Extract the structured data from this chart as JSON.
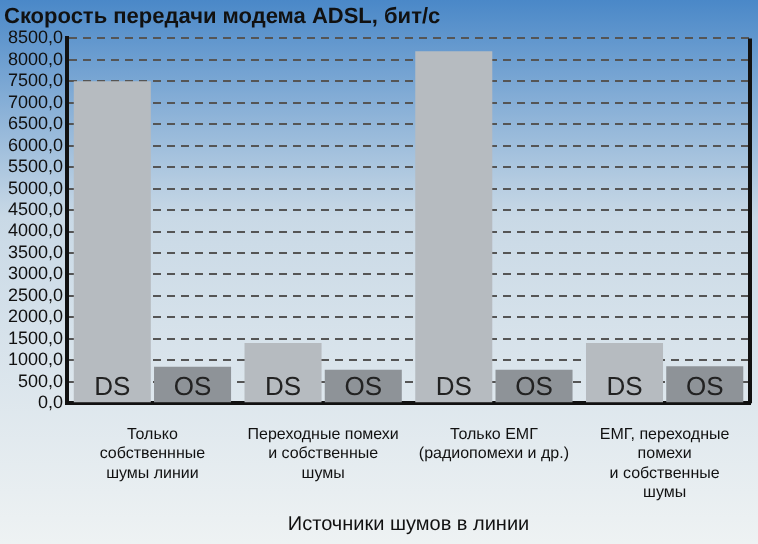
{
  "chart_data": {
    "type": "bar",
    "title": "Скорость передачи модема ADSL, бит/с",
    "xlabel": "Источники шумов в линии",
    "categories": [
      "Только собственнные\nшумы линии",
      "Переходные помехи\nи собственные шумы",
      "Только ЕМГ\n(радиопомехи и др.)",
      "ЕМГ, переходные помехи\nи собственные шумы"
    ],
    "series": [
      {
        "name": "DS",
        "color": "#b6bbc0",
        "values": [
          7500,
          1400,
          8200,
          1400
        ]
      },
      {
        "name": "OS",
        "color": "#8e9398",
        "values": [
          850,
          780,
          780,
          860
        ]
      }
    ],
    "ylim": [
      0,
      8500
    ],
    "yticks": [
      {
        "value": 0,
        "label": "0,0"
      },
      {
        "value": 500,
        "label": "500,0"
      },
      {
        "value": 1000,
        "label": "1000,0"
      },
      {
        "value": 1500,
        "label": "1500,0"
      },
      {
        "value": 2000,
        "label": "2000,0"
      },
      {
        "value": 2500,
        "label": "2500,0"
      },
      {
        "value": 3000,
        "label": "3000,0"
      },
      {
        "value": 3500,
        "label": "3500,0"
      },
      {
        "value": 4000,
        "label": "4000,0"
      },
      {
        "value": 4500,
        "label": "4500,0"
      },
      {
        "value": 5000,
        "label": "5000,0"
      },
      {
        "value": 5500,
        "label": "5500,0"
      },
      {
        "value": 6000,
        "label": "6000,0"
      },
      {
        "value": 6500,
        "label": "6500,0"
      },
      {
        "value": 7000,
        "label": "7000,0"
      },
      {
        "value": 7500,
        "label": "7500,0"
      },
      {
        "value": 8000,
        "label": "8000,0"
      },
      {
        "value": 8500,
        "label": "8500,0"
      }
    ],
    "grid": "y",
    "legend": false
  }
}
